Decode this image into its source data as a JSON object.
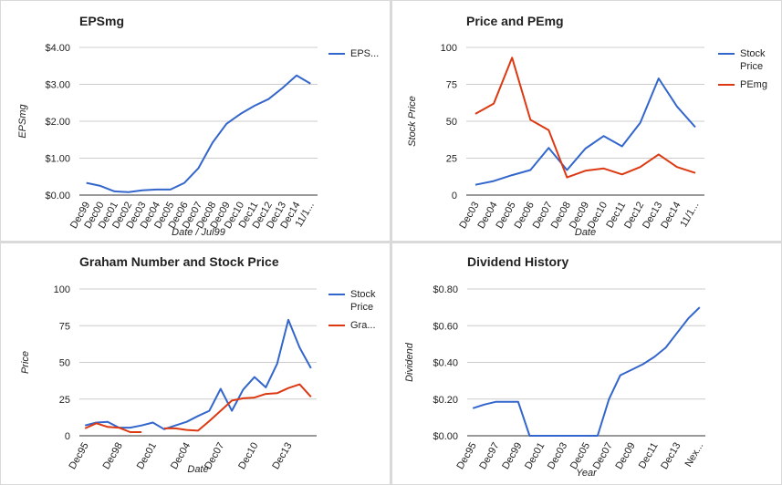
{
  "chart_data": [
    {
      "type": "line",
      "title": "EPSmg",
      "x_label": "Date / Jul99",
      "y_label": "EPSmg",
      "legend": "right",
      "categories": [
        "Dec99",
        "Dec00",
        "Dec01",
        "Dec02",
        "Dec03",
        "Dec04",
        "Dec05",
        "Dec06",
        "Dec07",
        "Dec08",
        "Dec09",
        "Dec10",
        "Dec11",
        "Dec12",
        "Dec13",
        "Dec14",
        "11/1..."
      ],
      "series": [
        {
          "name": "EPS...",
          "color": "#3366cc",
          "values": [
            0.33,
            0.25,
            0.1,
            0.08,
            0.13,
            0.15,
            0.15,
            0.33,
            0.73,
            1.42,
            1.93,
            2.2,
            2.42,
            2.6,
            2.9,
            3.24,
            3.02
          ]
        }
      ],
      "ylim": [
        0,
        4
      ],
      "yticks": [
        {
          "value": 0,
          "label": "$0.00"
        },
        {
          "value": 1,
          "label": "$1.00"
        },
        {
          "value": 2,
          "label": "$2.00"
        },
        {
          "value": 3,
          "label": "$3.00"
        },
        {
          "value": 4,
          "label": "$4.00"
        }
      ],
      "grid": true
    },
    {
      "type": "line",
      "title": "Price and PEmg",
      "x_label": "Date",
      "y_label": "Stock Price",
      "legend": "right",
      "categories": [
        "Dec03",
        "Dec04",
        "Dec05",
        "Dec06",
        "Dec07",
        "Dec08",
        "Dec09",
        "Dec10",
        "Dec11",
        "Dec12",
        "Dec13",
        "Dec14",
        "11/1..."
      ],
      "series": [
        {
          "name": "Stock Price",
          "color": "#3366cc",
          "values": [
            7,
            9.5,
            13.5,
            17,
            32,
            17,
            31.5,
            40,
            33,
            49,
            79,
            60,
            46
          ]
        },
        {
          "name": "PEmg",
          "color": "#dc3912",
          "values": [
            55,
            62,
            93,
            51,
            44,
            12,
            16.5,
            18,
            14,
            19,
            27.5,
            19,
            15
          ]
        }
      ],
      "ylim": [
        0,
        100
      ],
      "yticks": [
        0,
        25,
        50,
        75,
        100
      ],
      "grid": true
    },
    {
      "type": "line",
      "title": "Graham Number and Stock Price",
      "x_label": "Date",
      "y_label": "Price",
      "legend": "right",
      "categories": [
        "Dec95",
        null,
        null,
        "Dec98",
        null,
        null,
        "Dec01",
        null,
        null,
        "Dec04",
        null,
        null,
        "Dec07",
        null,
        null,
        "Dec10",
        null,
        null,
        "Dec13",
        null,
        null
      ],
      "series": [
        {
          "name": "Stock Price",
          "color": "#3366cc",
          "values": [
            7,
            9,
            9.5,
            5.5,
            5.5,
            7,
            9,
            4.5,
            7,
            9.5,
            13.5,
            17,
            32,
            17,
            31.5,
            40,
            33,
            49,
            79,
            60,
            46
          ]
        },
        {
          "name": "Gra...",
          "color": "#dc3912",
          "values": [
            5,
            8.5,
            6,
            5.5,
            2.5,
            2.5,
            null,
            5,
            5,
            4,
            3.5,
            10,
            17,
            24,
            25.5,
            26,
            28.5,
            29,
            32.5,
            35,
            26.5
          ]
        }
      ],
      "ylim": [
        0,
        100
      ],
      "yticks": [
        0,
        25,
        50,
        75,
        100
      ],
      "grid": true
    },
    {
      "type": "line",
      "title": "Dividend History",
      "x_label": "Year",
      "y_label": "Dividend",
      "categories": [
        "Dec95",
        null,
        "Dec97",
        null,
        "Dec99",
        null,
        "Dec01",
        null,
        "Dec03",
        null,
        "Dec05",
        null,
        "Dec07",
        null,
        "Dec09",
        null,
        "Dec11",
        null,
        "Dec13",
        null,
        "Nex..."
      ],
      "series": [
        {
          "name": "Dividend",
          "color": "#3366cc",
          "values": [
            0.15,
            0.17,
            0.185,
            0.185,
            0.185,
            0,
            0,
            0,
            0,
            0,
            0,
            0,
            0.2,
            0.33,
            0.36,
            0.39,
            0.43,
            0.48,
            0.56,
            0.64,
            0.7
          ]
        }
      ],
      "ylim": [
        0,
        0.8
      ],
      "yticks": [
        {
          "value": 0,
          "label": "$0.00"
        },
        {
          "value": 0.2,
          "label": "$0.20"
        },
        {
          "value": 0.4,
          "label": "$0.40"
        },
        {
          "value": 0.6,
          "label": "$0.60"
        },
        {
          "value": 0.8,
          "label": "$0.80"
        }
      ],
      "grid": true
    }
  ]
}
